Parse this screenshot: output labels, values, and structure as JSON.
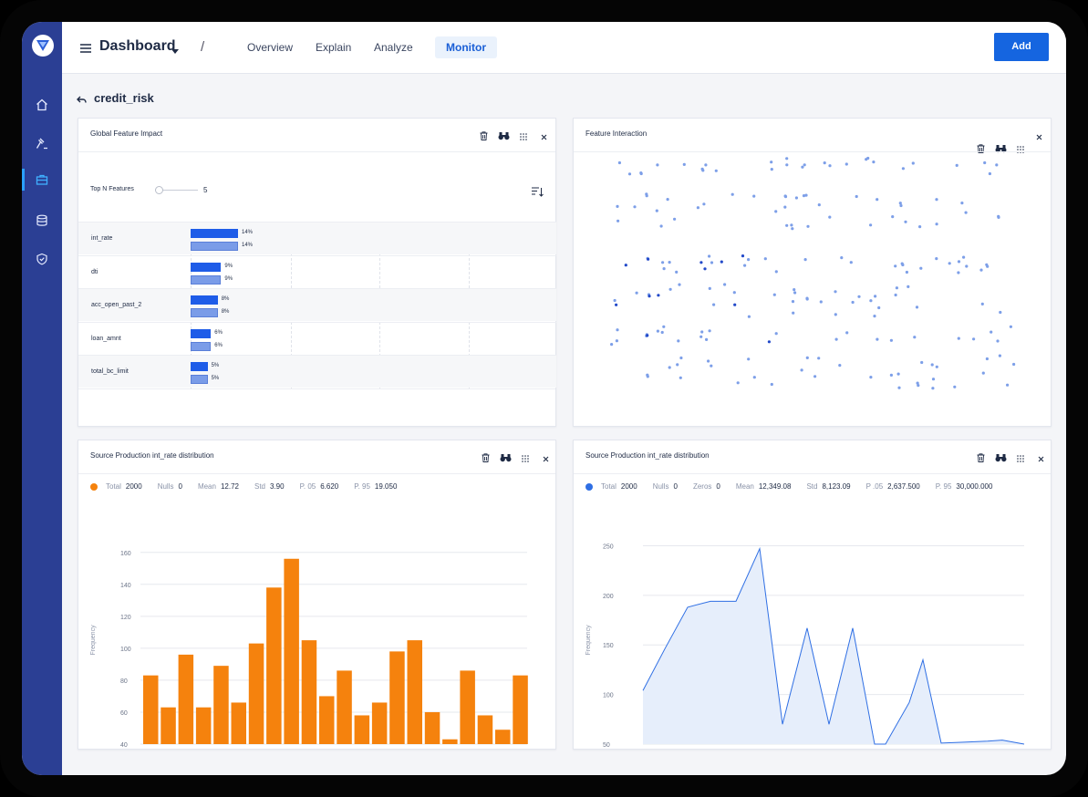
{
  "header": {
    "title": "Dashboard",
    "tabs": [
      {
        "label": "Overview",
        "active": false
      },
      {
        "label": "Explain",
        "active": false
      },
      {
        "label": "Analyze",
        "active": false
      },
      {
        "label": "Monitor",
        "active": true
      }
    ],
    "add_label": "Add",
    "separator": "/"
  },
  "sidebar": {
    "items": [
      {
        "icon": "home-icon",
        "active": false
      },
      {
        "icon": "gavel-icon",
        "active": false
      },
      {
        "icon": "briefcase-icon",
        "active": true
      },
      {
        "icon": "database-icon",
        "active": false
      },
      {
        "icon": "shield-check-icon",
        "active": false
      }
    ]
  },
  "page": {
    "title": "credit_risk"
  },
  "feature_impact": {
    "title": "Global Feature Impact",
    "top_n_label": "Top N Features",
    "top_n_value": "5",
    "slider_fraction": 0.1,
    "features": [
      {
        "name": "int_rate",
        "v1": 14,
        "v2": 14,
        "l1": "14%",
        "l2": "14%"
      },
      {
        "name": "dti",
        "v1": 9,
        "v2": 9,
        "l1": "9%",
        "l2": "9%"
      },
      {
        "name": "acc_open_past_2",
        "v1": 8,
        "v2": 8,
        "l1": "8%",
        "l2": "8%"
      },
      {
        "name": "loan_amnt",
        "v1": 6,
        "v2": 6,
        "l1": "6%",
        "l2": "6%"
      },
      {
        "name": "total_bc_limit",
        "v1": 5,
        "v2": 5,
        "l1": "5%",
        "l2": "5%"
      }
    ]
  },
  "feature_interaction": {
    "title": "Feature Interaction"
  },
  "histogram": {
    "title": "Source Production int_rate distribution",
    "stats": {
      "total_label": "Total",
      "total": "2000",
      "nulls_label": "Nulls",
      "nulls": "0",
      "mean_label": "Mean",
      "mean": "12.72",
      "std_label": "Std",
      "std": "3.90",
      "p05_label": "P. 05",
      "p05": "6.620",
      "p95_label": "P. 95",
      "p95": "19.050"
    },
    "accent": "#f5820d"
  },
  "area_chart": {
    "title": "Source Production int_rate distribution",
    "stats": {
      "total_label": "Total",
      "total": "2000",
      "nulls_label": "Nulls",
      "nulls": "0",
      "zeros_label": "Zeros",
      "zeros": "0",
      "mean_label": "Mean",
      "mean": "12,349.08",
      "std_label": "Std",
      "std": "8,123.09",
      "p05_label": "P .05",
      "p05": "2,637.500",
      "p95_label": "P. 95",
      "p95": "30,000.000"
    },
    "accent": "#2f6fe4"
  },
  "chart_data": [
    {
      "type": "bar",
      "ylabel": "Frequency",
      "ylim": [
        40,
        165
      ],
      "yticks": [
        40,
        60,
        80,
        100,
        120,
        140,
        160
      ],
      "values": [
        83,
        63,
        96,
        63,
        89,
        66,
        103,
        138,
        156,
        105,
        70,
        86,
        58,
        66,
        98,
        105,
        60,
        43,
        86,
        58,
        49,
        83
      ],
      "grid": true
    },
    {
      "type": "area",
      "ylabel": "Frequency",
      "ylim": [
        50,
        255
      ],
      "yticks": [
        50,
        100,
        150,
        200,
        250
      ],
      "values": [
        104,
        146,
        188,
        194,
        194,
        247,
        70,
        167,
        70,
        167,
        50,
        50,
        92,
        135,
        51,
        52,
        53,
        54,
        50
      ],
      "grid": true
    },
    {
      "type": "scatter",
      "xlim": [
        0,
        1
      ],
      "ylim": [
        0,
        1
      ],
      "grid": false
    }
  ]
}
